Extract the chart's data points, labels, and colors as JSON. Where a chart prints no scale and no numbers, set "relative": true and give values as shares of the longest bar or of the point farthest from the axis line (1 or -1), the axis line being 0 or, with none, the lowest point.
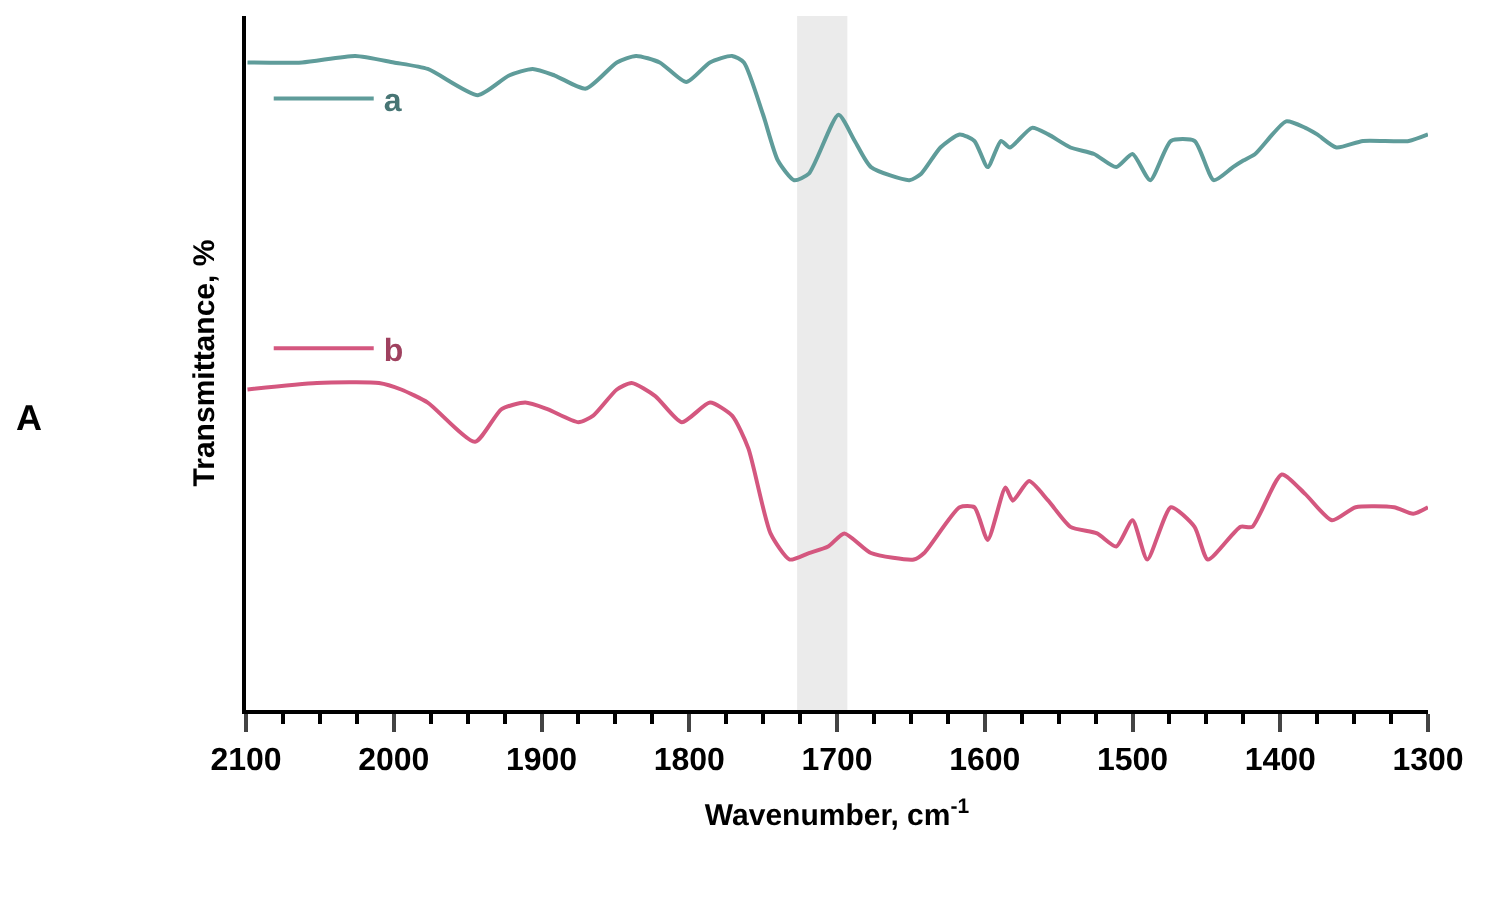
{
  "chart_data": {
    "type": "line",
    "relative": true,
    "xlabel": "Wavenumber, cm$^{-1}$",
    "ylabel": "Transmittance, %",
    "annotations": [
      "A"
    ],
    "xlim": [
      2100,
      1300
    ],
    "xticks": [
      2100,
      {
        "value": 2075,
        "label": null
      },
      {
        "value": 2050,
        "label": null
      },
      {
        "value": 2025,
        "label": null
      },
      2000,
      {
        "value": 1975,
        "label": null
      },
      {
        "value": 1950,
        "label": null
      },
      {
        "value": 1925,
        "label": null
      },
      1900,
      {
        "value": 1875,
        "label": null
      },
      {
        "value": 1850,
        "label": null
      },
      {
        "value": 1825,
        "label": null
      },
      1800,
      {
        "value": 1775,
        "label": null
      },
      {
        "value": 1750,
        "label": null
      },
      {
        "value": 1725,
        "label": null
      },
      1700,
      {
        "value": 1675,
        "label": null
      },
      {
        "value": 1650,
        "label": null
      },
      {
        "value": 1625,
        "label": null
      },
      1600,
      {
        "value": 1575,
        "label": null
      },
      {
        "value": 1550,
        "label": null
      },
      {
        "value": 1525,
        "label": null
      },
      1500,
      {
        "value": 1475,
        "label": null
      },
      {
        "value": 1450,
        "label": null
      },
      {
        "value": 1425,
        "label": null
      },
      1400,
      {
        "value": 1375,
        "label": null
      },
      {
        "value": 1350,
        "label": null
      },
      {
        "value": 1325,
        "label": null
      },
      1300
    ],
    "bands": [
      {
        "axis": "x",
        "from": 1727,
        "to": 1693,
        "color": "#ebebeb"
      }
    ],
    "legend": "top left",
    "grid": false,
    "marker": "none",
    "line_style": "solid",
    "series": [
      {
        "name": "a",
        "color": "#5f9c9a",
        "x": [
          2099,
          2062,
          2026,
          2000,
          1977,
          1943,
          1922,
          1906,
          1891,
          1870,
          1849,
          1836,
          1820,
          1802,
          1786,
          1771,
          1763,
          1750,
          1740,
          1729,
          1719,
          1699,
          1688,
          1677,
          1651,
          1643,
          1630,
          1617,
          1607,
          1598,
          1589,
          1583,
          1568,
          1557,
          1542,
          1526,
          1511,
          1500,
          1488,
          1474,
          1458,
          1445,
          1432,
          1425,
          1417,
          1396,
          1383,
          1375,
          1362,
          1344,
          1313,
          1300
        ],
        "values": [
          0.99,
          0.99,
          1.0,
          0.99,
          0.98,
          0.94,
          0.97,
          0.98,
          0.97,
          0.95,
          0.99,
          1.0,
          0.99,
          0.96,
          0.99,
          1.0,
          0.99,
          0.91,
          0.84,
          0.81,
          0.82,
          0.91,
          0.87,
          0.83,
          0.81,
          0.82,
          0.86,
          0.88,
          0.87,
          0.83,
          0.87,
          0.86,
          0.89,
          0.88,
          0.86,
          0.85,
          0.83,
          0.85,
          0.81,
          0.87,
          0.87,
          0.81,
          0.83,
          0.84,
          0.85,
          0.9,
          0.89,
          0.88,
          0.86,
          0.87,
          0.87,
          0.88
        ]
      },
      {
        "name": "b",
        "color": "#d4577f",
        "x": [
          2099,
          2052,
          2010,
          1995,
          1977,
          1945,
          1927,
          1911,
          1896,
          1875,
          1865,
          1849,
          1839,
          1823,
          1805,
          1786,
          1771,
          1760,
          1745,
          1732,
          1719,
          1706,
          1695,
          1677,
          1648,
          1641,
          1617,
          1607,
          1598,
          1586,
          1581,
          1570,
          1557,
          1542,
          1524,
          1511,
          1500,
          1490,
          1474,
          1458,
          1449,
          1427,
          1419,
          1399,
          1383,
          1365,
          1349,
          1323,
          1310,
          1300
        ],
        "values": [
          0.49,
          0.5,
          0.5,
          0.49,
          0.47,
          0.41,
          0.46,
          0.47,
          0.46,
          0.44,
          0.45,
          0.49,
          0.5,
          0.48,
          0.44,
          0.47,
          0.45,
          0.4,
          0.27,
          0.23,
          0.24,
          0.25,
          0.27,
          0.24,
          0.23,
          0.24,
          0.31,
          0.31,
          0.26,
          0.34,
          0.32,
          0.35,
          0.32,
          0.28,
          0.27,
          0.25,
          0.29,
          0.23,
          0.31,
          0.28,
          0.23,
          0.28,
          0.28,
          0.36,
          0.33,
          0.29,
          0.31,
          0.31,
          0.3,
          0.31
        ]
      }
    ]
  }
}
